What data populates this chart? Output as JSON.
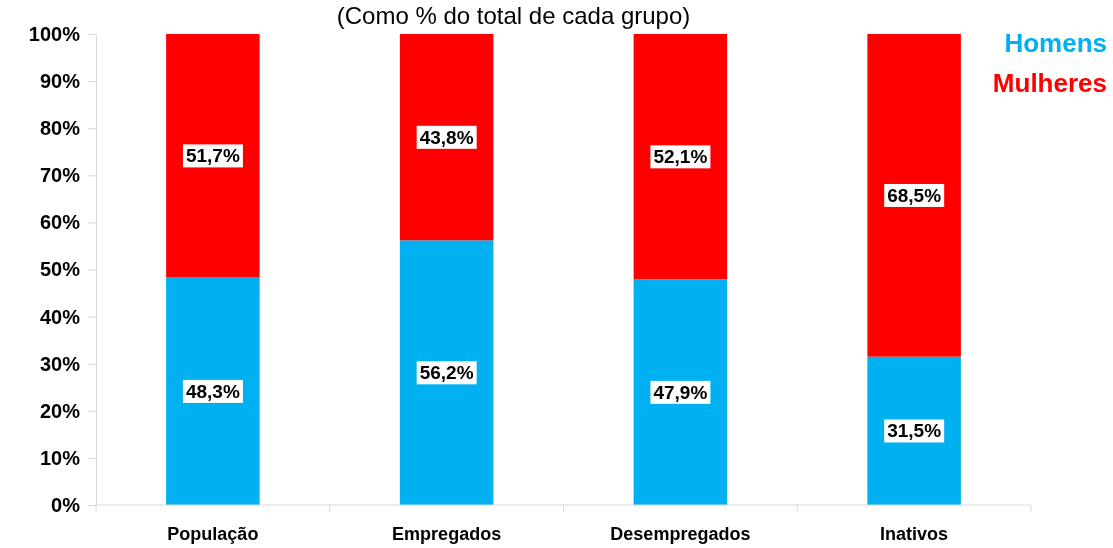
{
  "chart_data": {
    "type": "bar",
    "subtitle": "(Como % do total de cada grupo)",
    "categories": [
      "População",
      "Empregados",
      "Desempregados",
      "Inativos"
    ],
    "series": [
      {
        "name": "Homens",
        "color": "#00b0f0",
        "values": [
          48.3,
          56.2,
          47.9,
          31.5
        ],
        "value_labels": [
          "48,3%",
          "56,2%",
          "47,9%",
          "31,5%"
        ]
      },
      {
        "name": "Mulheres",
        "color": "#ff0000",
        "values": [
          51.7,
          43.8,
          52.1,
          68.5
        ],
        "value_labels": [
          "51,7%",
          "43,8%",
          "52,1%",
          "68,5%"
        ]
      }
    ],
    "stacked": true,
    "ylim": [
      0,
      100
    ],
    "yticks": [
      {
        "value": 0,
        "label": "0%"
      },
      {
        "value": 10,
        "label": "10%"
      },
      {
        "value": 20,
        "label": "20%"
      },
      {
        "value": 30,
        "label": "30%"
      },
      {
        "value": 40,
        "label": "40%"
      },
      {
        "value": 50,
        "label": "50%"
      },
      {
        "value": 60,
        "label": "60%"
      },
      {
        "value": 70,
        "label": "70%"
      },
      {
        "value": 80,
        "label": "80%"
      },
      {
        "value": 90,
        "label": "90%"
      },
      {
        "value": 100,
        "label": "100%"
      }
    ],
    "legend": "top right"
  }
}
